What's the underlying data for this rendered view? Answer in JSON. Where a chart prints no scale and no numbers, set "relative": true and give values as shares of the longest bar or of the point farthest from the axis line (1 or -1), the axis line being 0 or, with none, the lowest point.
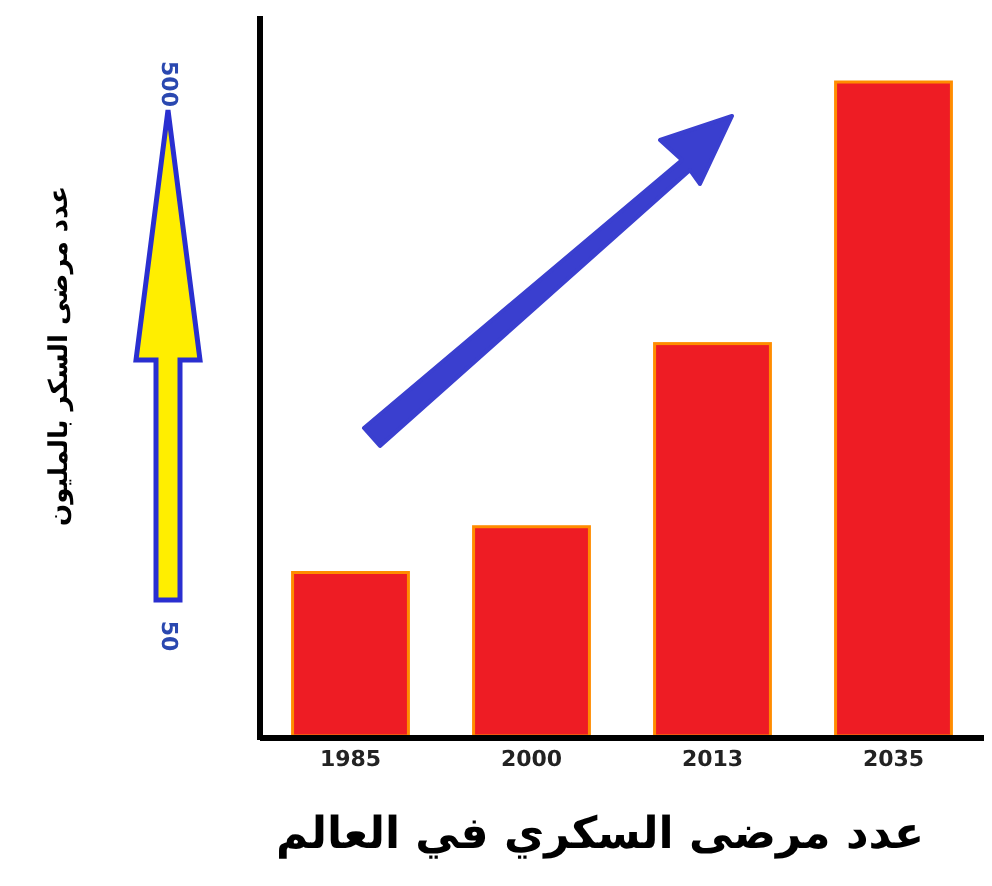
{
  "chart_data": {
    "type": "bar",
    "relative": true,
    "title": "عدد مرضى السكري في العالم",
    "annotations": [
      "500",
      "50",
      "عدد مرضى السكر بالمليون"
    ],
    "categories": [
      "1985",
      "2000",
      "2013",
      "2035"
    ],
    "values": [
      0.25,
      0.32,
      0.6,
      1
    ],
    "color": "#ee1c24"
  }
}
